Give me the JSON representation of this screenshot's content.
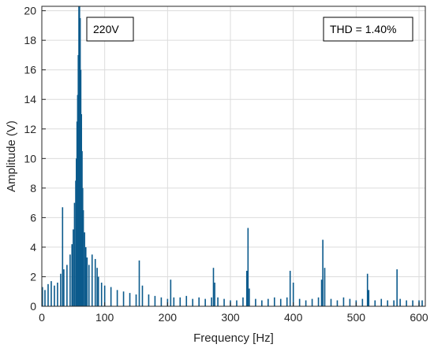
{
  "chart_data": {
    "type": "bar",
    "xlabel": "Frequency [Hz]",
    "ylabel": "Amplitude (V)",
    "xlim": [
      0,
      610
    ],
    "ylim": [
      0,
      20.3
    ],
    "x_ticks": [
      0,
      100,
      200,
      300,
      400,
      500,
      600
    ],
    "y_ticks": [
      0,
      2,
      4,
      6,
      8,
      10,
      12,
      14,
      16,
      18,
      20
    ],
    "grid": true,
    "bar_color": "#0b5a8c",
    "annotations": [
      {
        "text": "220V",
        "position": "top-left"
      },
      {
        "text": "THD = 1.40%",
        "position": "top-right"
      }
    ],
    "x": [
      1,
      5,
      10,
      15,
      20,
      25,
      30,
      33,
      35,
      40,
      45,
      48,
      50,
      52,
      54,
      55,
      56,
      57,
      58,
      59,
      60,
      61,
      62,
      63,
      64,
      65,
      66,
      68,
      70,
      72,
      75,
      80,
      85,
      88,
      90,
      95,
      100,
      110,
      120,
      130,
      140,
      150,
      155,
      160,
      170,
      180,
      190,
      200,
      205,
      210,
      220,
      230,
      240,
      250,
      260,
      270,
      273,
      275,
      280,
      290,
      300,
      310,
      320,
      326,
      328,
      330,
      340,
      350,
      360,
      370,
      380,
      390,
      395,
      400,
      410,
      420,
      430,
      440,
      445,
      447,
      450,
      460,
      470,
      480,
      490,
      500,
      510,
      518,
      520,
      530,
      540,
      550,
      560,
      565,
      570,
      580,
      590,
      600,
      605
    ],
    "values": [
      1.3,
      1.1,
      1.5,
      1.7,
      1.4,
      1.6,
      2.2,
      6.7,
      2.5,
      2.8,
      3.5,
      4.2,
      5.2,
      7.0,
      8.5,
      10.0,
      12.5,
      14.3,
      17.0,
      20.3,
      20.3,
      19.5,
      16.0,
      13.0,
      10.5,
      8.0,
      6.5,
      5.0,
      4.0,
      3.3,
      2.8,
      3.5,
      3.2,
      2.6,
      2.0,
      1.6,
      1.4,
      1.3,
      1.1,
      1.0,
      0.9,
      0.8,
      3.1,
      1.4,
      0.8,
      0.7,
      0.6,
      0.5,
      1.8,
      0.6,
      0.6,
      0.7,
      0.5,
      0.6,
      0.5,
      0.6,
      2.6,
      1.6,
      0.6,
      0.5,
      0.4,
      0.4,
      0.6,
      2.4,
      5.3,
      1.2,
      0.5,
      0.4,
      0.5,
      0.6,
      0.5,
      0.6,
      2.4,
      1.6,
      0.5,
      0.4,
      0.5,
      0.6,
      1.8,
      4.5,
      2.6,
      0.5,
      0.4,
      0.6,
      0.5,
      0.4,
      0.5,
      2.2,
      1.1,
      0.4,
      0.5,
      0.4,
      0.4,
      2.5,
      0.5,
      0.4,
      0.4,
      0.4,
      0.4
    ]
  }
}
